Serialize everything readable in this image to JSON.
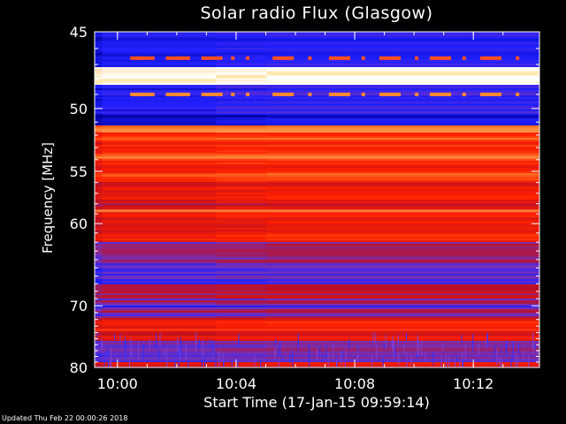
{
  "title": "Solar radio Flux (Glasgow)",
  "footer": "Updated Thu Feb 22 00:00:26 2018",
  "chart_data": {
    "type": "heatmap",
    "title": "Solar radio Flux (Glasgow)",
    "xlabel": "Start Time (17-Jan-15 09:59:14)",
    "ylabel": "Frequency [MHz]",
    "x_ticks": [
      "10:00",
      "10:04",
      "10:08",
      "10:12"
    ],
    "x_tick_minutes": [
      0.77,
      4.77,
      8.77,
      12.77
    ],
    "xlim_minutes": [
      0,
      15
    ],
    "y_ticks": [
      45,
      50,
      55,
      60,
      70,
      80
    ],
    "ylim": [
      45,
      80
    ],
    "y_scale": "reciprocal",
    "colormap": [
      "#0000a0",
      "#2020ff",
      "#7030c0",
      "#c01020",
      "#ff2000",
      "#ff6a20",
      "#ffd080",
      "#ffffff"
    ],
    "background_color": "#000000",
    "notable_features": {
      "bright_band_frequency": 47.8,
      "time_segment_boundaries_minutes": [
        0.25,
        4.1,
        5.8
      ]
    }
  }
}
